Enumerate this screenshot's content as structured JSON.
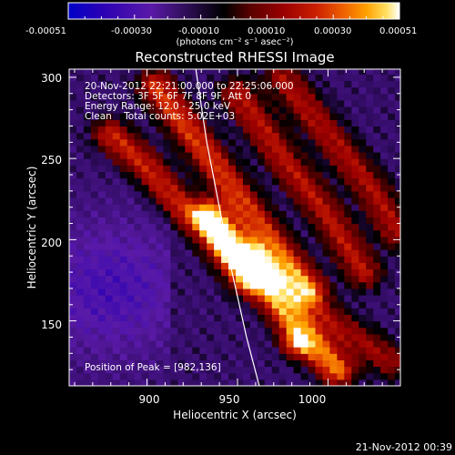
{
  "colorbar": {
    "ticks": [
      "-0.00051",
      "-0.00030",
      "-0.00010",
      "0.00010",
      "0.00030",
      "0.00051"
    ],
    "unit_label": "(photons cm⁻² s⁻¹ asec⁻²)",
    "colormap": [
      "#0000c8",
      "#2a00b4",
      "#5a1aa8",
      "#000000",
      "#5a0000",
      "#9a0000",
      "#cc2000",
      "#ee6000",
      "#ffa000",
      "#ffe060",
      "#ffffff"
    ]
  },
  "plot": {
    "title": "Reconstructed RHESSI Image",
    "info_lines": [
      "20-Nov-2012 22:21:00.000 to 22:25:06.000",
      "Detectors: 3F 5F 6F 7F 8F 9F, Att 0",
      "Energy Range: 12.0 - 25.0 keV",
      "Clean    Total counts: 5.02E+03"
    ],
    "peak_text": "Position of Peak = [982,136]",
    "xlabel": "Heliocentric X (arcsec)",
    "ylabel": "Heliocentric Y (arcsec)",
    "xticks": [
      "900",
      "950",
      "1000"
    ],
    "yticks": [
      "300",
      "250",
      "200",
      "150"
    ],
    "footer_timestamp": "21-Nov-2012 00:39"
  },
  "chart_data": [
    {
      "type": "heatmap",
      "title": "Reconstructed RHESSI Image",
      "xlabel": "Heliocentric X (arcsec)",
      "ylabel": "Heliocentric Y (arcsec)",
      "xlim": [
        857,
        1040
      ],
      "ylim": [
        110,
        305
      ],
      "value_range": [
        -0.00051,
        0.00051
      ],
      "colorbar_unit": "photons cm^-2 s^-1 asec^-2",
      "peak": {
        "x": 982,
        "y": 136
      },
      "limb_curve_x": [
        927,
        933,
        940,
        947,
        955,
        962
      ],
      "limb_curve_y": [
        305,
        260,
        220,
        180,
        140,
        110
      ],
      "bright_ridges": [
        {
          "x": [
            880,
            900,
            915,
            935,
            945,
            955
          ],
          "y": [
            265,
            245,
            225,
            205,
            190,
            175
          ]
        },
        {
          "x": [
            905,
            925,
            945,
            965,
            990
          ],
          "y": [
            295,
            265,
            235,
            205,
            170
          ]
        },
        {
          "x": [
            935,
            960,
            980,
            1005
          ],
          "y": [
            215,
            180,
            150,
            120
          ]
        },
        {
          "x": [
            950,
            975,
            1000,
            1020
          ],
          "y": [
            290,
            250,
            215,
            180
          ]
        },
        {
          "x": [
            975,
            1000,
            1025,
            1038
          ],
          "y": [
            300,
            265,
            230,
            205
          ]
        },
        {
          "x": [
            960,
            990,
            1015,
            1035
          ],
          "y": [
            190,
            160,
            140,
            125
          ]
        }
      ],
      "ridge_intensities": [
        0.00036,
        0.0004,
        0.00049,
        0.00032,
        0.0003,
        0.00027
      ]
    }
  ]
}
